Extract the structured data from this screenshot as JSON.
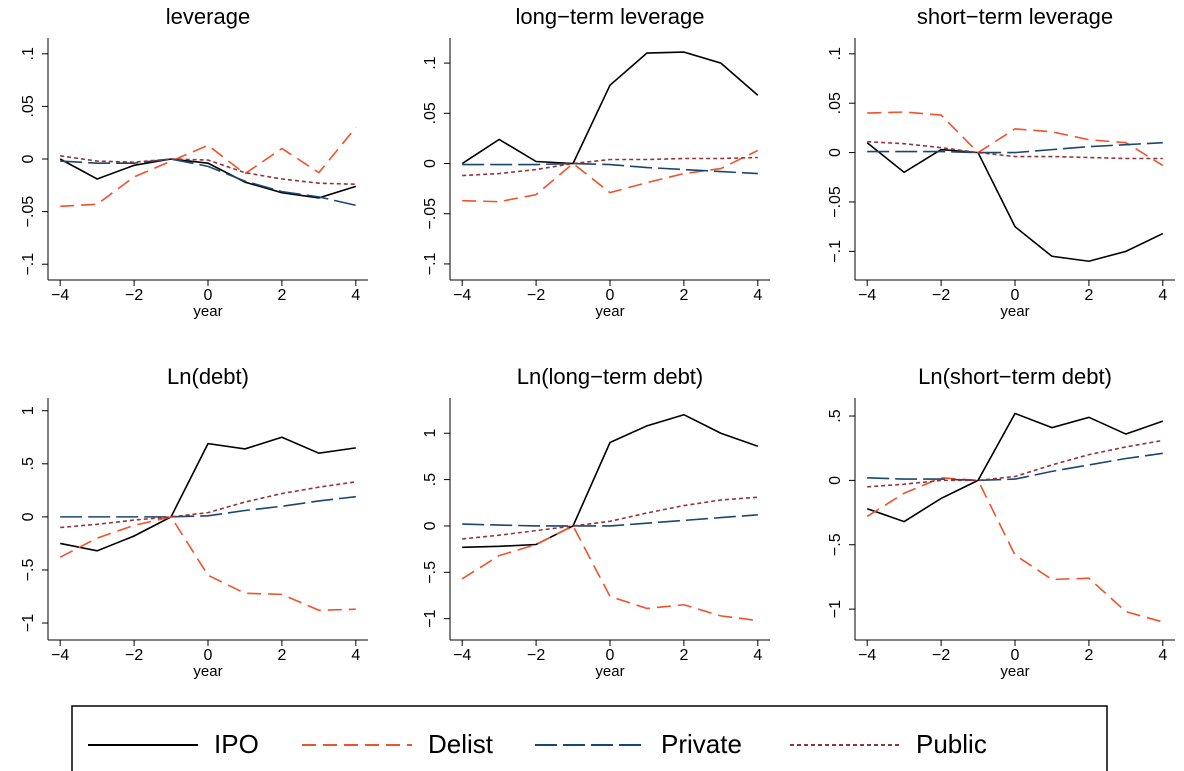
{
  "chart_data": [
    {
      "type": "line",
      "title": "leverage",
      "xlabel": "year",
      "x": [
        -4,
        -3,
        -2,
        -1,
        0,
        1,
        2,
        3,
        4
      ],
      "xlim": [
        -4.33,
        4.33
      ],
      "xticks": [
        {
          "value": -4,
          "label": "−4"
        },
        {
          "value": -2,
          "label": "−2"
        },
        0,
        2,
        4
      ],
      "ylim": [
        -0.115,
        0.115
      ],
      "yticks": [
        {
          "value": -0.1,
          "label": "−.1"
        },
        {
          "value": -0.05,
          "label": "−.05"
        },
        0,
        {
          "value": 0.05,
          "label": ".05"
        },
        {
          "value": 0.1,
          "label": ".1"
        }
      ],
      "series": [
        {
          "name": "IPO",
          "color": "#000000",
          "values": [
            0,
            -0.019,
            -0.006,
            0,
            -0.004,
            -0.022,
            -0.032,
            -0.037,
            -0.026
          ]
        },
        {
          "name": "Delist",
          "color": "#f0532a",
          "values": [
            -0.045,
            -0.043,
            -0.017,
            -0.002,
            0.013,
            -0.014,
            0.01,
            -0.013,
            0.03
          ]
        },
        {
          "name": "Private",
          "color": "#1a476f",
          "values": [
            -0.002,
            -0.004,
            -0.004,
            0,
            -0.007,
            -0.021,
            -0.031,
            -0.036,
            -0.044
          ]
        },
        {
          "name": "Public",
          "color": "#90353b",
          "values": [
            0.003,
            -0.002,
            -0.003,
            0,
            -0.001,
            -0.013,
            -0.019,
            -0.023,
            -0.024
          ]
        }
      ]
    },
    {
      "type": "line",
      "title": "long−term leverage",
      "xlabel": "year",
      "x": [
        -4,
        -3,
        -2,
        -1,
        0,
        1,
        2,
        3,
        4
      ],
      "xlim": [
        -4.33,
        4.33
      ],
      "xticks": [
        {
          "value": -4,
          "label": "−4"
        },
        {
          "value": -2,
          "label": "−2"
        },
        0,
        2,
        4
      ],
      "ylim": [
        -0.116,
        0.125
      ],
      "yticks": [
        {
          "value": -0.1,
          "label": "−.1"
        },
        {
          "value": -0.05,
          "label": "−.05"
        },
        0,
        {
          "value": 0.05,
          "label": ".05"
        },
        {
          "value": 0.1,
          "label": ".1"
        }
      ],
      "series": [
        {
          "name": "IPO",
          "color": "#000000",
          "values": [
            0,
            0.024,
            0.002,
            0,
            0.078,
            0.11,
            0.111,
            0.1,
            0.068
          ]
        },
        {
          "name": "Delist",
          "color": "#f0532a",
          "values": [
            -0.037,
            -0.038,
            -0.031,
            0,
            -0.029,
            -0.019,
            -0.01,
            -0.005,
            0.013
          ]
        },
        {
          "name": "Private",
          "color": "#1a476f",
          "values": [
            -0.001,
            -0.001,
            -0.001,
            0,
            -0.001,
            -0.004,
            -0.006,
            -0.008,
            -0.01
          ]
        },
        {
          "name": "Public",
          "color": "#90353b",
          "values": [
            -0.012,
            -0.01,
            -0.006,
            0,
            0.004,
            0.004,
            0.005,
            0.005,
            0.006
          ]
        }
      ]
    },
    {
      "type": "line",
      "title": "short−term leverage",
      "xlabel": "year",
      "x": [
        -4,
        -3,
        -2,
        -1,
        0,
        1,
        2,
        3,
        4
      ],
      "xlim": [
        -4.33,
        4.33
      ],
      "xticks": [
        {
          "value": -4,
          "label": "−4"
        },
        {
          "value": -2,
          "label": "−2"
        },
        0,
        2,
        4
      ],
      "ylim": [
        -0.129,
        0.116
      ],
      "yticks": [
        {
          "value": -0.1,
          "label": "−.1"
        },
        {
          "value": -0.05,
          "label": "−.05"
        },
        0,
        {
          "value": 0.05,
          "label": ".05"
        },
        {
          "value": 0.1,
          "label": ".1"
        }
      ],
      "series": [
        {
          "name": "IPO",
          "color": "#000000",
          "values": [
            0.01,
            -0.02,
            0.003,
            0,
            -0.075,
            -0.105,
            -0.11,
            -0.1,
            -0.082
          ]
        },
        {
          "name": "Delist",
          "color": "#f0532a",
          "values": [
            0.04,
            0.041,
            0.038,
            0,
            0.024,
            0.021,
            0.013,
            0.01,
            -0.013
          ]
        },
        {
          "name": "Private",
          "color": "#1a476f",
          "values": [
            0.001,
            0.001,
            0.001,
            0,
            0,
            0.003,
            0.006,
            0.008,
            0.01
          ]
        },
        {
          "name": "Public",
          "color": "#90353b",
          "values": [
            0.011,
            0.009,
            0.005,
            0,
            -0.004,
            -0.004,
            -0.005,
            -0.006,
            -0.006
          ]
        }
      ]
    },
    {
      "type": "line",
      "title": "Ln(debt)",
      "xlabel": "year",
      "x": [
        -4,
        -3,
        -2,
        -1,
        0,
        1,
        2,
        3,
        4
      ],
      "xlim": [
        -4.33,
        4.33
      ],
      "xticks": [
        {
          "value": -4,
          "label": "−4"
        },
        {
          "value": -2,
          "label": "−2"
        },
        0,
        2,
        4
      ],
      "ylim": [
        -1.16,
        1.12
      ],
      "yticks": [
        {
          "value": -1,
          "label": "−1"
        },
        {
          "value": -0.5,
          "label": "−.5"
        },
        0,
        {
          "value": 0.5,
          "label": ".5"
        },
        1
      ],
      "series": [
        {
          "name": "IPO",
          "color": "#000000",
          "values": [
            -0.25,
            -0.32,
            -0.18,
            0,
            0.69,
            0.64,
            0.75,
            0.6,
            0.65
          ]
        },
        {
          "name": "Delist",
          "color": "#f0532a",
          "values": [
            -0.38,
            -0.2,
            -0.08,
            0,
            -0.55,
            -0.72,
            -0.73,
            -0.88,
            -0.87
          ]
        },
        {
          "name": "Private",
          "color": "#1a476f",
          "values": [
            0,
            0,
            0,
            0,
            0.01,
            0.06,
            0.1,
            0.15,
            0.19
          ]
        },
        {
          "name": "Public",
          "color": "#90353b",
          "values": [
            -0.1,
            -0.07,
            -0.03,
            0,
            0.04,
            0.14,
            0.22,
            0.28,
            0.33
          ]
        }
      ]
    },
    {
      "type": "line",
      "title": "Ln(long−term debt)",
      "xlabel": "year",
      "x": [
        -4,
        -3,
        -2,
        -1,
        0,
        1,
        2,
        3,
        4
      ],
      "xlim": [
        -4.33,
        4.33
      ],
      "xticks": [
        {
          "value": -4,
          "label": "−4"
        },
        {
          "value": -2,
          "label": "−2"
        },
        0,
        2,
        4
      ],
      "ylim": [
        -1.23,
        1.38
      ],
      "yticks": [
        {
          "value": -1,
          "label": "−1"
        },
        {
          "value": -0.5,
          "label": "−.5"
        },
        0,
        {
          "value": 0.5,
          "label": ".5"
        },
        1
      ],
      "series": [
        {
          "name": "IPO",
          "color": "#000000",
          "values": [
            -0.23,
            -0.22,
            -0.2,
            0,
            0.9,
            1.08,
            1.2,
            1.0,
            0.86
          ]
        },
        {
          "name": "Delist",
          "color": "#f0532a",
          "values": [
            -0.57,
            -0.32,
            -0.2,
            0,
            -0.76,
            -0.89,
            -0.85,
            -0.97,
            -1.02
          ]
        },
        {
          "name": "Private",
          "color": "#1a476f",
          "values": [
            0.02,
            0.01,
            0,
            0,
            0,
            0.03,
            0.06,
            0.09,
            0.12
          ]
        },
        {
          "name": "Public",
          "color": "#90353b",
          "values": [
            -0.14,
            -0.1,
            -0.05,
            0,
            0.05,
            0.14,
            0.22,
            0.28,
            0.31
          ]
        }
      ]
    },
    {
      "type": "line",
      "title": "Ln(short−term debt)",
      "xlabel": "year",
      "x": [
        -4,
        -3,
        -2,
        -1,
        0,
        1,
        2,
        3,
        4
      ],
      "xlim": [
        -4.33,
        4.33
      ],
      "xticks": [
        {
          "value": -4,
          "label": "−4"
        },
        {
          "value": -2,
          "label": "−2"
        },
        0,
        2,
        4
      ],
      "ylim": [
        -1.24,
        0.64
      ],
      "yticks": [
        {
          "value": -1,
          "label": "−1"
        },
        {
          "value": -0.5,
          "label": "−.5"
        },
        0,
        {
          "value": 0.5,
          "label": ".5"
        }
      ],
      "series": [
        {
          "name": "IPO",
          "color": "#000000",
          "values": [
            -0.22,
            -0.32,
            -0.14,
            0,
            0.52,
            0.41,
            0.49,
            0.36,
            0.46
          ]
        },
        {
          "name": "Delist",
          "color": "#f0532a",
          "values": [
            -0.28,
            -0.1,
            0.02,
            0,
            -0.58,
            -0.77,
            -0.76,
            -1.02,
            -1.1
          ]
        },
        {
          "name": "Private",
          "color": "#1a476f",
          "values": [
            0.02,
            0.01,
            0.01,
            0,
            0.01,
            0.07,
            0.12,
            0.17,
            0.21
          ]
        },
        {
          "name": "Public",
          "color": "#90353b",
          "values": [
            -0.05,
            -0.03,
            0,
            0,
            0.03,
            0.12,
            0.2,
            0.26,
            0.31
          ]
        }
      ]
    }
  ]
}
